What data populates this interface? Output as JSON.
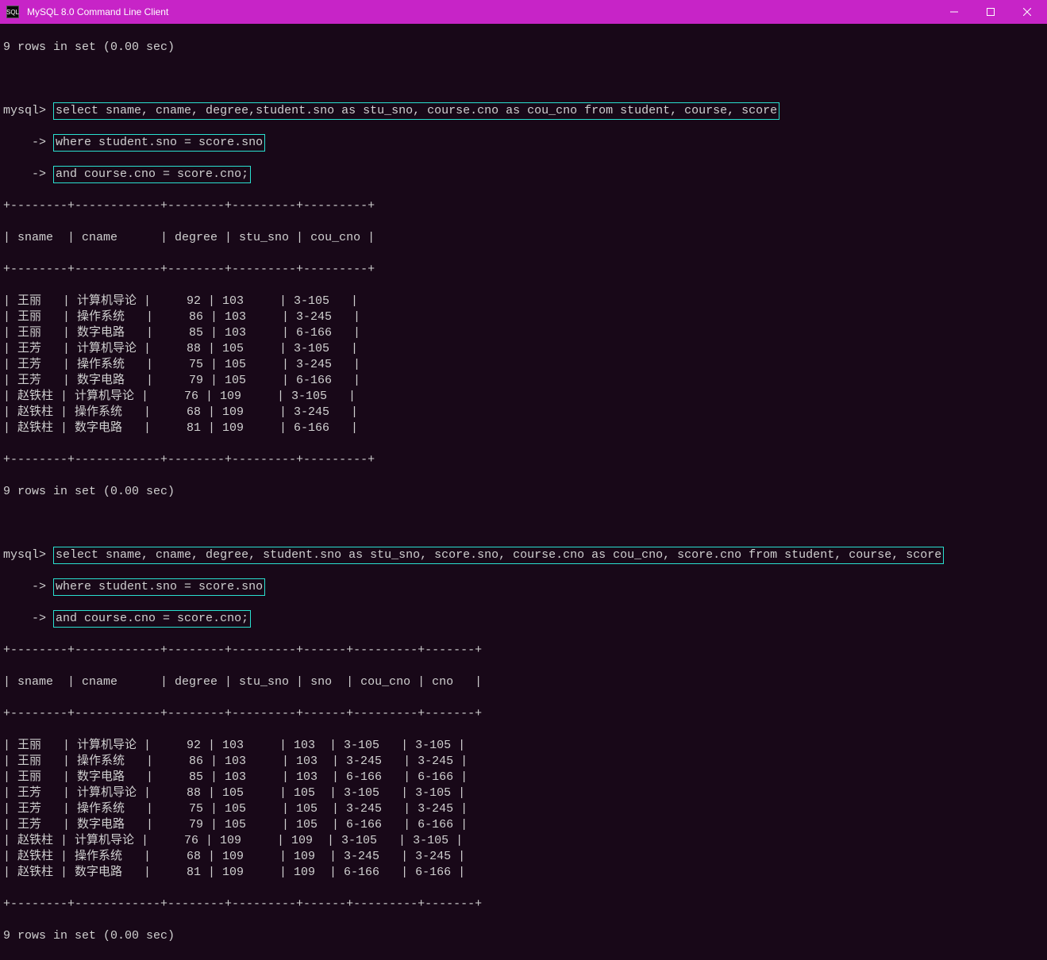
{
  "window": {
    "title": "MySQL 8.0 Command Line Client",
    "icon_label": "SQL"
  },
  "colors": {
    "titlebar_bg": "#c724c7",
    "terminal_bg": "#180818",
    "text": "#d0d0d0",
    "highlight_border": "#2ae0d0"
  },
  "block1": {
    "status_top": "9 rows in set (0.00 sec)",
    "prompt1": "mysql>",
    "prompt_cont": "    ->",
    "query_line1": "select sname, cname, degree,student.sno as stu_sno, course.cno as cou_cno from student, course, score",
    "query_line2": "where student.sno = score.sno",
    "query_line3": "and course.cno = score.cno;",
    "table": {
      "sep": "+--------+------------+--------+---------+---------+",
      "header": "| sname  | cname      | degree | stu_sno | cou_cno |",
      "rows": [
        "| 王丽   | 计算机导论 |     92 | 103     | 3-105   |",
        "| 王丽   | 操作系统   |     86 | 103     | 3-245   |",
        "| 王丽   | 数字电路   |     85 | 103     | 6-166   |",
        "| 王芳   | 计算机导论 |     88 | 105     | 3-105   |",
        "| 王芳   | 操作系统   |     75 | 105     | 3-245   |",
        "| 王芳   | 数字电路   |     79 | 105     | 6-166   |",
        "| 赵铁柱 | 计算机导论 |     76 | 109     | 3-105   |",
        "| 赵铁柱 | 操作系统   |     68 | 109     | 3-245   |",
        "| 赵铁柱 | 数字电路   |     81 | 109     | 6-166   |"
      ]
    },
    "status_bottom": "9 rows in set (0.00 sec)"
  },
  "block2": {
    "prompt1": "mysql>",
    "prompt_cont": "    ->",
    "query_line1": "select sname, cname, degree, student.sno as stu_sno, score.sno, course.cno as cou_cno, score.cno from student, course, score",
    "query_line2": "where student.sno = score.sno",
    "query_line3": "and course.cno = score.cno;",
    "table": {
      "sep": "+--------+------------+--------+---------+------+---------+-------+",
      "header": "| sname  | cname      | degree | stu_sno | sno  | cou_cno | cno   |",
      "rows": [
        "| 王丽   | 计算机导论 |     92 | 103     | 103  | 3-105   | 3-105 |",
        "| 王丽   | 操作系统   |     86 | 103     | 103  | 3-245   | 3-245 |",
        "| 王丽   | 数字电路   |     85 | 103     | 103  | 6-166   | 6-166 |",
        "| 王芳   | 计算机导论 |     88 | 105     | 105  | 3-105   | 3-105 |",
        "| 王芳   | 操作系统   |     75 | 105     | 105  | 3-245   | 3-245 |",
        "| 王芳   | 数字电路   |     79 | 105     | 105  | 6-166   | 6-166 |",
        "| 赵铁柱 | 计算机导论 |     76 | 109     | 109  | 3-105   | 3-105 |",
        "| 赵铁柱 | 操作系统   |     68 | 109     | 109  | 3-245   | 3-245 |",
        "| 赵铁柱 | 数字电路   |     81 | 109     | 109  | 6-166   | 6-166 |"
      ]
    },
    "status_bottom": "9 rows in set (0.00 sec)"
  }
}
